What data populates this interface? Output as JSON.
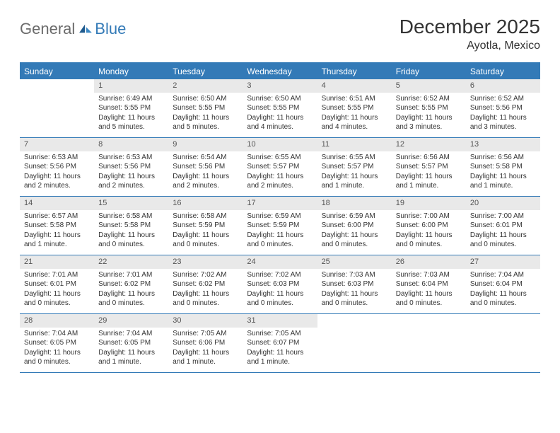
{
  "logo": {
    "text_general": "General",
    "text_blue": "Blue"
  },
  "title": "December 2025",
  "location": "Ayotla, Mexico",
  "colors": {
    "accent": "#337ab7",
    "header_grey": "#e9e9e9",
    "text": "#333333",
    "logo_grey": "#6b6b6b",
    "background": "#ffffff"
  },
  "weekdays": [
    "Sunday",
    "Monday",
    "Tuesday",
    "Wednesday",
    "Thursday",
    "Friday",
    "Saturday"
  ],
  "weeks": [
    [
      {
        "n": "",
        "lines": [
          "",
          "",
          "",
          ""
        ]
      },
      {
        "n": "1",
        "lines": [
          "Sunrise: 6:49 AM",
          "Sunset: 5:55 PM",
          "Daylight: 11 hours",
          "and 5 minutes."
        ]
      },
      {
        "n": "2",
        "lines": [
          "Sunrise: 6:50 AM",
          "Sunset: 5:55 PM",
          "Daylight: 11 hours",
          "and 5 minutes."
        ]
      },
      {
        "n": "3",
        "lines": [
          "Sunrise: 6:50 AM",
          "Sunset: 5:55 PM",
          "Daylight: 11 hours",
          "and 4 minutes."
        ]
      },
      {
        "n": "4",
        "lines": [
          "Sunrise: 6:51 AM",
          "Sunset: 5:55 PM",
          "Daylight: 11 hours",
          "and 4 minutes."
        ]
      },
      {
        "n": "5",
        "lines": [
          "Sunrise: 6:52 AM",
          "Sunset: 5:55 PM",
          "Daylight: 11 hours",
          "and 3 minutes."
        ]
      },
      {
        "n": "6",
        "lines": [
          "Sunrise: 6:52 AM",
          "Sunset: 5:56 PM",
          "Daylight: 11 hours",
          "and 3 minutes."
        ]
      }
    ],
    [
      {
        "n": "7",
        "lines": [
          "Sunrise: 6:53 AM",
          "Sunset: 5:56 PM",
          "Daylight: 11 hours",
          "and 2 minutes."
        ]
      },
      {
        "n": "8",
        "lines": [
          "Sunrise: 6:53 AM",
          "Sunset: 5:56 PM",
          "Daylight: 11 hours",
          "and 2 minutes."
        ]
      },
      {
        "n": "9",
        "lines": [
          "Sunrise: 6:54 AM",
          "Sunset: 5:56 PM",
          "Daylight: 11 hours",
          "and 2 minutes."
        ]
      },
      {
        "n": "10",
        "lines": [
          "Sunrise: 6:55 AM",
          "Sunset: 5:57 PM",
          "Daylight: 11 hours",
          "and 2 minutes."
        ]
      },
      {
        "n": "11",
        "lines": [
          "Sunrise: 6:55 AM",
          "Sunset: 5:57 PM",
          "Daylight: 11 hours",
          "and 1 minute."
        ]
      },
      {
        "n": "12",
        "lines": [
          "Sunrise: 6:56 AM",
          "Sunset: 5:57 PM",
          "Daylight: 11 hours",
          "and 1 minute."
        ]
      },
      {
        "n": "13",
        "lines": [
          "Sunrise: 6:56 AM",
          "Sunset: 5:58 PM",
          "Daylight: 11 hours",
          "and 1 minute."
        ]
      }
    ],
    [
      {
        "n": "14",
        "lines": [
          "Sunrise: 6:57 AM",
          "Sunset: 5:58 PM",
          "Daylight: 11 hours",
          "and 1 minute."
        ]
      },
      {
        "n": "15",
        "lines": [
          "Sunrise: 6:58 AM",
          "Sunset: 5:58 PM",
          "Daylight: 11 hours",
          "and 0 minutes."
        ]
      },
      {
        "n": "16",
        "lines": [
          "Sunrise: 6:58 AM",
          "Sunset: 5:59 PM",
          "Daylight: 11 hours",
          "and 0 minutes."
        ]
      },
      {
        "n": "17",
        "lines": [
          "Sunrise: 6:59 AM",
          "Sunset: 5:59 PM",
          "Daylight: 11 hours",
          "and 0 minutes."
        ]
      },
      {
        "n": "18",
        "lines": [
          "Sunrise: 6:59 AM",
          "Sunset: 6:00 PM",
          "Daylight: 11 hours",
          "and 0 minutes."
        ]
      },
      {
        "n": "19",
        "lines": [
          "Sunrise: 7:00 AM",
          "Sunset: 6:00 PM",
          "Daylight: 11 hours",
          "and 0 minutes."
        ]
      },
      {
        "n": "20",
        "lines": [
          "Sunrise: 7:00 AM",
          "Sunset: 6:01 PM",
          "Daylight: 11 hours",
          "and 0 minutes."
        ]
      }
    ],
    [
      {
        "n": "21",
        "lines": [
          "Sunrise: 7:01 AM",
          "Sunset: 6:01 PM",
          "Daylight: 11 hours",
          "and 0 minutes."
        ]
      },
      {
        "n": "22",
        "lines": [
          "Sunrise: 7:01 AM",
          "Sunset: 6:02 PM",
          "Daylight: 11 hours",
          "and 0 minutes."
        ]
      },
      {
        "n": "23",
        "lines": [
          "Sunrise: 7:02 AM",
          "Sunset: 6:02 PM",
          "Daylight: 11 hours",
          "and 0 minutes."
        ]
      },
      {
        "n": "24",
        "lines": [
          "Sunrise: 7:02 AM",
          "Sunset: 6:03 PM",
          "Daylight: 11 hours",
          "and 0 minutes."
        ]
      },
      {
        "n": "25",
        "lines": [
          "Sunrise: 7:03 AM",
          "Sunset: 6:03 PM",
          "Daylight: 11 hours",
          "and 0 minutes."
        ]
      },
      {
        "n": "26",
        "lines": [
          "Sunrise: 7:03 AM",
          "Sunset: 6:04 PM",
          "Daylight: 11 hours",
          "and 0 minutes."
        ]
      },
      {
        "n": "27",
        "lines": [
          "Sunrise: 7:04 AM",
          "Sunset: 6:04 PM",
          "Daylight: 11 hours",
          "and 0 minutes."
        ]
      }
    ],
    [
      {
        "n": "28",
        "lines": [
          "Sunrise: 7:04 AM",
          "Sunset: 6:05 PM",
          "Daylight: 11 hours",
          "and 0 minutes."
        ]
      },
      {
        "n": "29",
        "lines": [
          "Sunrise: 7:04 AM",
          "Sunset: 6:05 PM",
          "Daylight: 11 hours",
          "and 1 minute."
        ]
      },
      {
        "n": "30",
        "lines": [
          "Sunrise: 7:05 AM",
          "Sunset: 6:06 PM",
          "Daylight: 11 hours",
          "and 1 minute."
        ]
      },
      {
        "n": "31",
        "lines": [
          "Sunrise: 7:05 AM",
          "Sunset: 6:07 PM",
          "Daylight: 11 hours",
          "and 1 minute."
        ]
      },
      {
        "n": "",
        "lines": [
          "",
          "",
          "",
          ""
        ]
      },
      {
        "n": "",
        "lines": [
          "",
          "",
          "",
          ""
        ]
      },
      {
        "n": "",
        "lines": [
          "",
          "",
          "",
          ""
        ]
      }
    ]
  ]
}
